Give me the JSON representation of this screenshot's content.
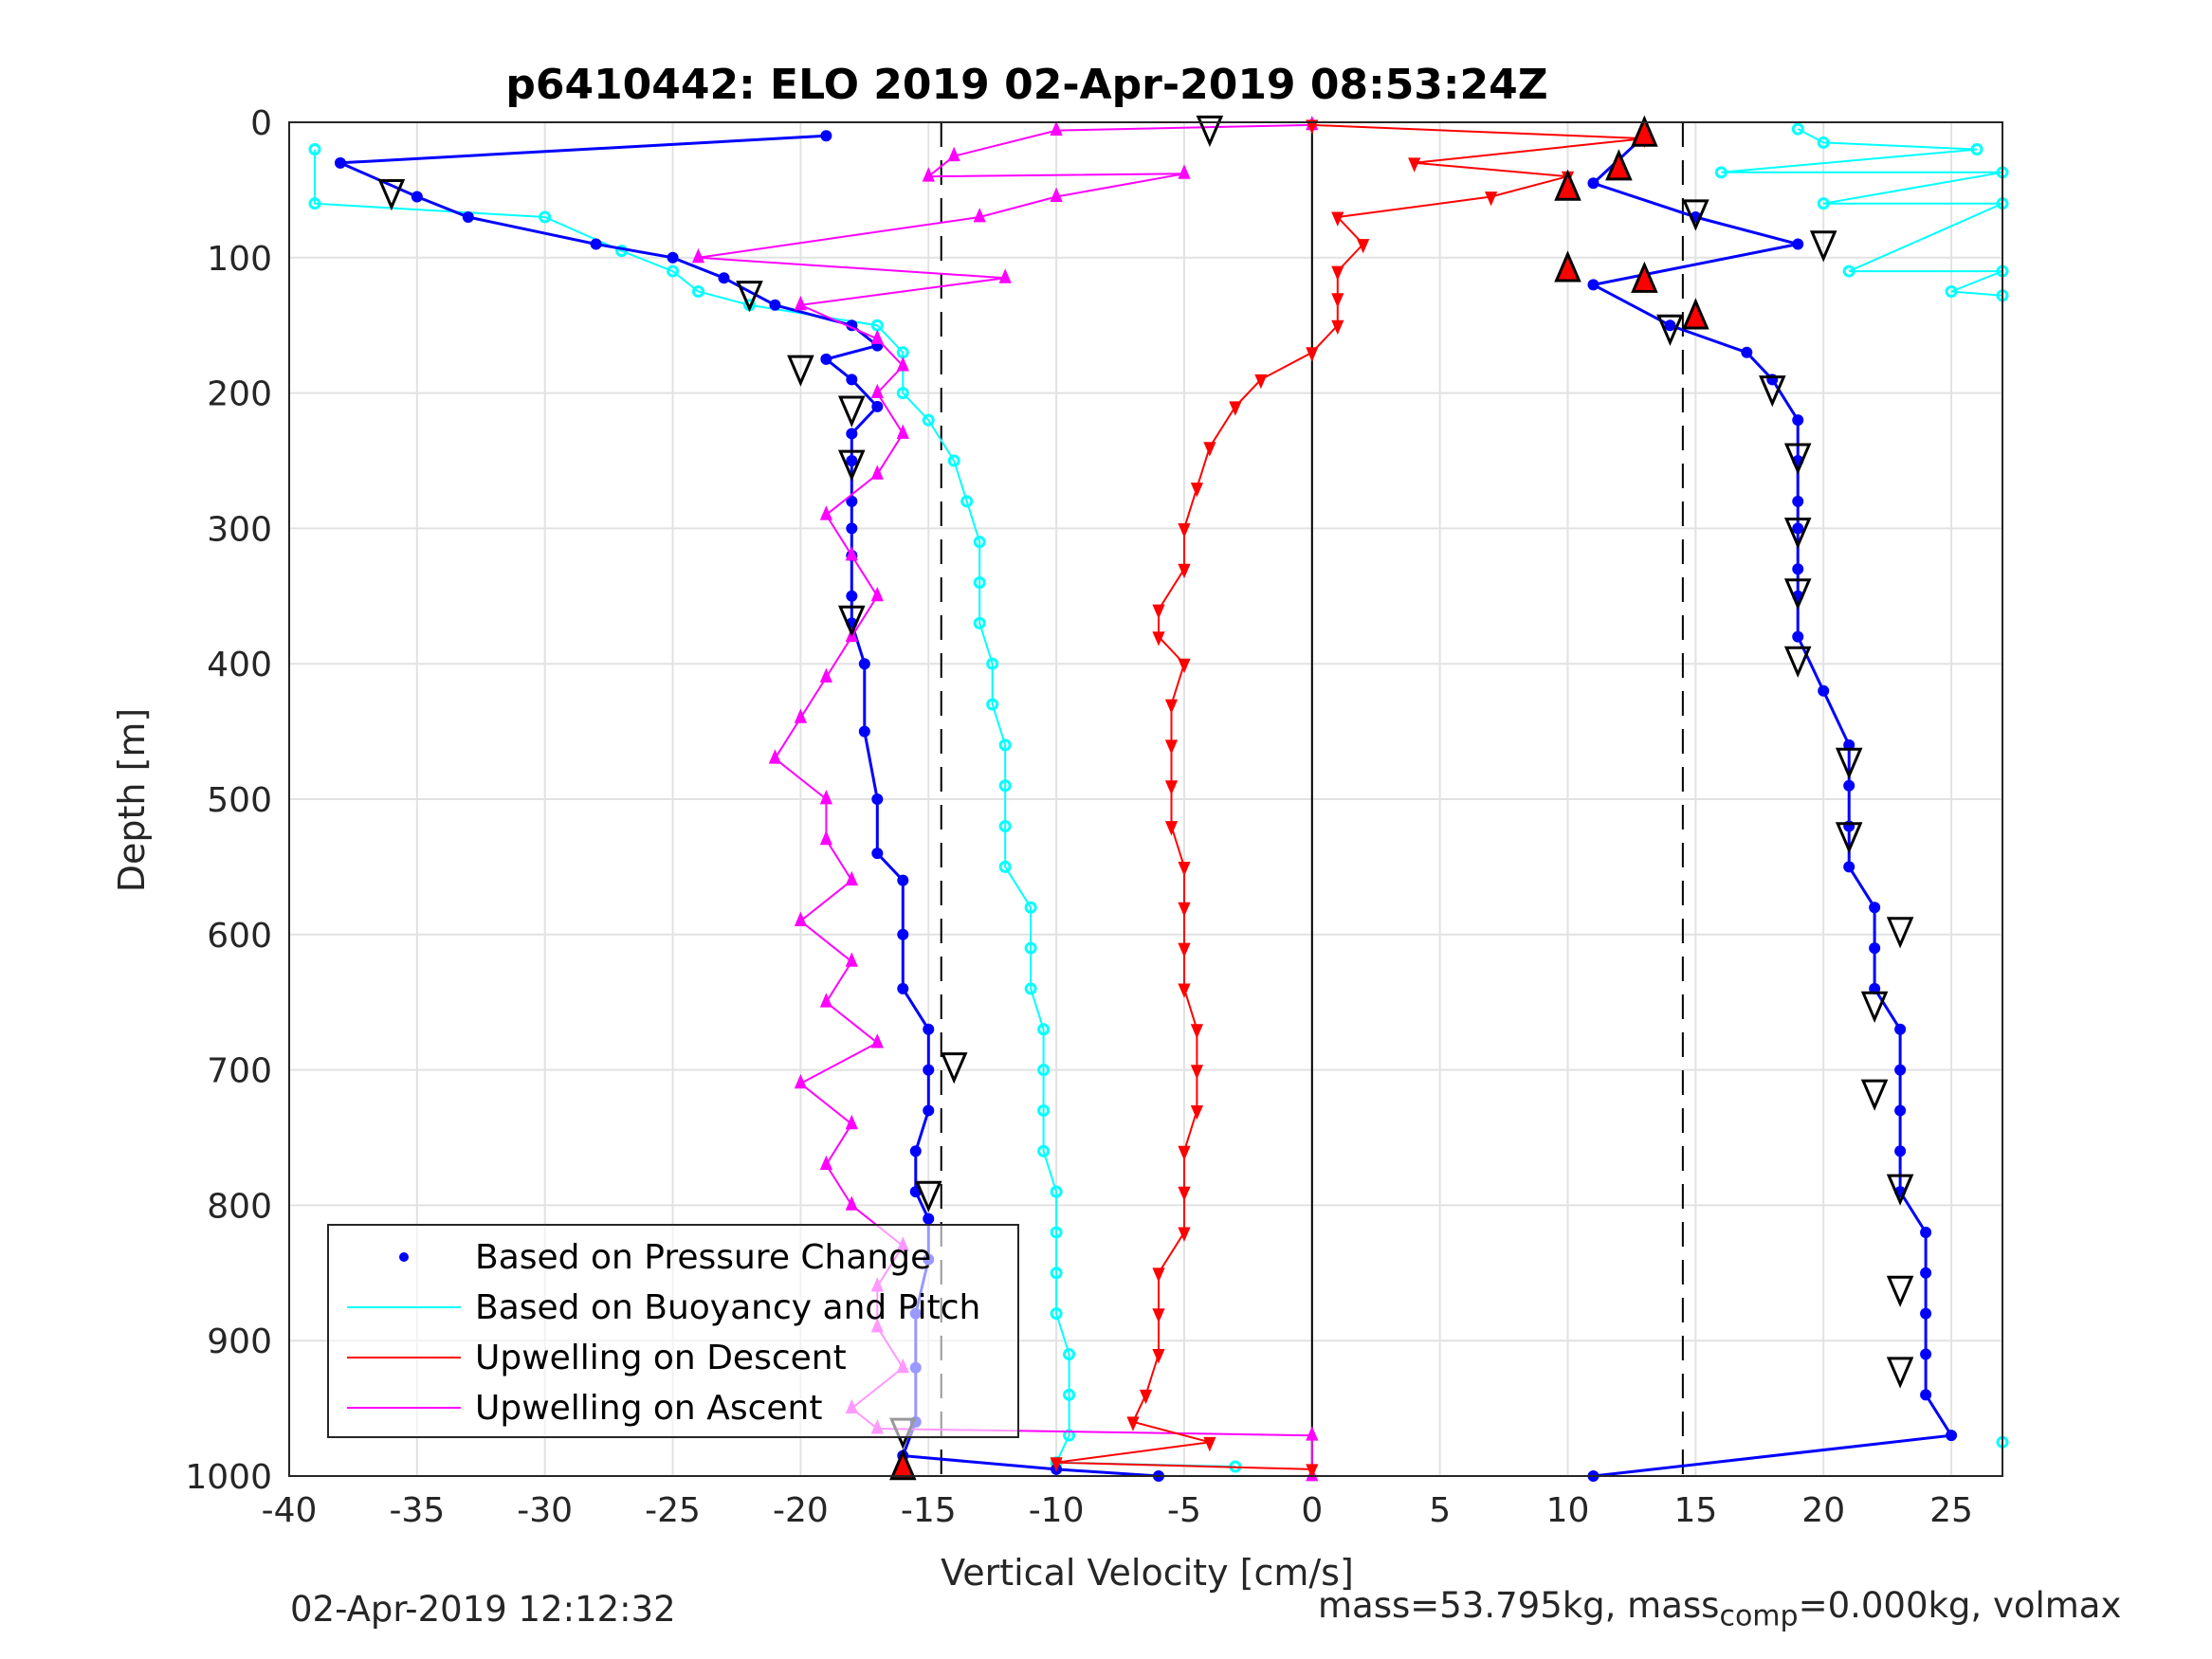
{
  "footer": {
    "timestamp": "02-Apr-2019 12:12:32",
    "mass_text_a": "mass=53.795kg, mass",
    "mass_sub": "comp",
    "mass_text_b": "=0.000kg, volmax"
  },
  "colors": {
    "pressure": "#0000ff",
    "buoyancy": "#00ffff",
    "descent": "#ff0000",
    "ascent": "#ff00ff",
    "grid": "#e2e2e2",
    "axis": "#262626"
  },
  "chart_data": {
    "type": "scatter",
    "title": "p6410442: ELO 2019 02-Apr-2019 08:53:24Z",
    "xlabel": "Vertical Velocity [cm/s]",
    "ylabel": "Depth [m]",
    "xlim": [
      -40,
      27
    ],
    "ylim": [
      0,
      1000
    ],
    "y_reversed": true,
    "xticks": [
      -40,
      -35,
      -30,
      -25,
      -20,
      -15,
      -10,
      -5,
      0,
      5,
      10,
      15,
      20,
      25
    ],
    "yticks": [
      0,
      100,
      200,
      300,
      400,
      500,
      600,
      700,
      800,
      900,
      1000
    ],
    "grid": true,
    "legend_position": "bottom-left",
    "reference_lines": {
      "dashed_x": [
        -14.5,
        14.5
      ],
      "solid_x": [
        0
      ]
    },
    "series": [
      {
        "name": "Based on Pressure Change",
        "style": "dots",
        "descent": [
          [
            -19,
            10
          ],
          [
            -38,
            30
          ],
          [
            -35,
            55
          ],
          [
            -33,
            70
          ],
          [
            -28,
            90
          ],
          [
            -25,
            100
          ],
          [
            -23,
            115
          ],
          [
            -21,
            135
          ],
          [
            -18,
            150
          ],
          [
            -17,
            165
          ],
          [
            -19,
            175
          ],
          [
            -18,
            190
          ],
          [
            -17,
            210
          ],
          [
            -18,
            230
          ],
          [
            -18,
            250
          ],
          [
            -18,
            280
          ],
          [
            -18,
            300
          ],
          [
            -18,
            320
          ],
          [
            -18,
            350
          ],
          [
            -18,
            370
          ],
          [
            -17.5,
            400
          ],
          [
            -17.5,
            450
          ],
          [
            -17,
            500
          ],
          [
            -17,
            540
          ],
          [
            -16,
            560
          ],
          [
            -16,
            600
          ],
          [
            -16,
            640
          ],
          [
            -15,
            670
          ],
          [
            -15,
            700
          ],
          [
            -15,
            730
          ],
          [
            -15.5,
            760
          ],
          [
            -15.5,
            790
          ],
          [
            -15,
            810
          ],
          [
            -15,
            840
          ],
          [
            -15.5,
            880
          ],
          [
            -15.5,
            920
          ],
          [
            -15.5,
            960
          ],
          [
            -16,
            985
          ],
          [
            -10,
            995
          ],
          [
            -6,
            1000
          ]
        ],
        "ascent": [
          [
            13,
            10
          ],
          [
            11,
            45
          ],
          [
            15,
            70
          ],
          [
            19,
            90
          ],
          [
            11,
            120
          ],
          [
            14,
            150
          ],
          [
            17,
            170
          ],
          [
            18,
            190
          ],
          [
            19,
            220
          ],
          [
            19,
            250
          ],
          [
            19,
            280
          ],
          [
            19,
            300
          ],
          [
            19,
            330
          ],
          [
            19,
            350
          ],
          [
            19,
            380
          ],
          [
            20,
            420
          ],
          [
            21,
            460
          ],
          [
            21,
            490
          ],
          [
            21,
            520
          ],
          [
            21,
            550
          ],
          [
            22,
            580
          ],
          [
            22,
            610
          ],
          [
            22,
            640
          ],
          [
            23,
            670
          ],
          [
            23,
            700
          ],
          [
            23,
            730
          ],
          [
            23,
            760
          ],
          [
            23,
            790
          ],
          [
            24,
            820
          ],
          [
            24,
            850
          ],
          [
            24,
            880
          ],
          [
            24,
            910
          ],
          [
            24,
            940
          ],
          [
            25,
            970
          ],
          [
            11,
            1000
          ]
        ]
      },
      {
        "name": "Based on Buoyancy and Pitch",
        "style": "line-circle",
        "descent": [
          [
            -39,
            20
          ],
          [
            -39,
            60
          ],
          [
            -30,
            70
          ],
          [
            -27,
            95
          ],
          [
            -25,
            110
          ],
          [
            -24,
            125
          ],
          [
            -22,
            135
          ],
          [
            -17,
            150
          ],
          [
            -16,
            170
          ],
          [
            -16,
            200
          ],
          [
            -15,
            220
          ],
          [
            -14,
            250
          ],
          [
            -13.5,
            280
          ],
          [
            -13,
            310
          ],
          [
            -13,
            340
          ],
          [
            -13,
            370
          ],
          [
            -12.5,
            400
          ],
          [
            -12.5,
            430
          ],
          [
            -12,
            460
          ],
          [
            -12,
            490
          ],
          [
            -12,
            520
          ],
          [
            -12,
            550
          ],
          [
            -11,
            580
          ],
          [
            -11,
            610
          ],
          [
            -11,
            640
          ],
          [
            -10.5,
            670
          ],
          [
            -10.5,
            700
          ],
          [
            -10.5,
            730
          ],
          [
            -10.5,
            760
          ],
          [
            -10,
            790
          ],
          [
            -10,
            820
          ],
          [
            -10,
            850
          ],
          [
            -10,
            880
          ],
          [
            -9.5,
            910
          ],
          [
            -9.5,
            940
          ],
          [
            -9.5,
            970
          ],
          [
            -10,
            990
          ],
          [
            -3,
            993
          ]
        ],
        "ascent": [
          [
            19,
            5
          ],
          [
            20,
            15
          ],
          [
            26,
            20
          ],
          [
            16,
            37
          ],
          [
            27,
            37
          ],
          [
            20,
            60
          ],
          [
            27,
            60
          ],
          [
            21,
            110
          ],
          [
            27,
            110
          ],
          [
            25,
            125
          ],
          [
            27,
            128
          ],
          [
            27,
            975
          ]
        ]
      },
      {
        "name": "Upwelling on Descent",
        "style": "line-triangle-down",
        "points": [
          [
            0,
            2
          ],
          [
            13,
            12
          ],
          [
            4,
            30
          ],
          [
            10,
            40
          ],
          [
            7,
            55
          ],
          [
            1,
            70
          ],
          [
            2,
            90
          ],
          [
            1,
            110
          ],
          [
            1,
            130
          ],
          [
            1,
            150
          ],
          [
            0,
            170
          ],
          [
            -2,
            190
          ],
          [
            -3,
            210
          ],
          [
            -4,
            240
          ],
          [
            -4.5,
            270
          ],
          [
            -5,
            300
          ],
          [
            -5,
            330
          ],
          [
            -6,
            360
          ],
          [
            -6,
            380
          ],
          [
            -5,
            400
          ],
          [
            -5.5,
            430
          ],
          [
            -5.5,
            460
          ],
          [
            -5.5,
            490
          ],
          [
            -5.5,
            520
          ],
          [
            -5,
            550
          ],
          [
            -5,
            580
          ],
          [
            -5,
            610
          ],
          [
            -5,
            640
          ],
          [
            -4.5,
            670
          ],
          [
            -4.5,
            700
          ],
          [
            -4.5,
            730
          ],
          [
            -5,
            760
          ],
          [
            -5,
            790
          ],
          [
            -5,
            820
          ],
          [
            -6,
            850
          ],
          [
            -6,
            880
          ],
          [
            -6,
            910
          ],
          [
            -6.5,
            940
          ],
          [
            -7,
            960
          ],
          [
            -4,
            975
          ],
          [
            -10,
            990
          ],
          [
            0,
            995
          ]
        ]
      },
      {
        "name": "Upwelling on Ascent",
        "style": "line-triangle-up",
        "points": [
          [
            0,
            2
          ],
          [
            -10,
            6
          ],
          [
            -14,
            25
          ],
          [
            -15,
            40
          ],
          [
            -5,
            38
          ],
          [
            -10,
            55
          ],
          [
            -13,
            70
          ],
          [
            -24,
            100
          ],
          [
            -12,
            115
          ],
          [
            -20,
            135
          ],
          [
            -17,
            160
          ],
          [
            -16,
            180
          ],
          [
            -17,
            200
          ],
          [
            -16,
            230
          ],
          [
            -17,
            260
          ],
          [
            -19,
            290
          ],
          [
            -18,
            320
          ],
          [
            -17,
            350
          ],
          [
            -18,
            380
          ],
          [
            -19,
            410
          ],
          [
            -20,
            440
          ],
          [
            -21,
            470
          ],
          [
            -19,
            500
          ],
          [
            -19,
            530
          ],
          [
            -18,
            560
          ],
          [
            -20,
            590
          ],
          [
            -18,
            620
          ],
          [
            -19,
            650
          ],
          [
            -17,
            680
          ],
          [
            -20,
            710
          ],
          [
            -18,
            740
          ],
          [
            -19,
            770
          ],
          [
            -18,
            800
          ],
          [
            -16,
            830
          ],
          [
            -17,
            860
          ],
          [
            -17,
            890
          ],
          [
            -16,
            920
          ],
          [
            -18,
            950
          ],
          [
            -17,
            965
          ],
          [
            0,
            970
          ],
          [
            0,
            1000
          ]
        ]
      }
    ],
    "markers": {
      "open_triangles": [
        [
          -4,
          3
        ],
        [
          -36,
          50
        ],
        [
          -22,
          125
        ],
        [
          -20,
          180
        ],
        [
          -18,
          210
        ],
        [
          -18,
          250
        ],
        [
          -18,
          365
        ],
        [
          -14,
          695
        ],
        [
          -15,
          790
        ],
        [
          -16,
          965
        ],
        [
          15,
          65
        ],
        [
          20,
          88
        ],
        [
          14,
          150
        ],
        [
          18,
          195
        ],
        [
          19,
          245
        ],
        [
          19,
          300
        ],
        [
          19,
          345
        ],
        [
          19,
          395
        ],
        [
          21,
          470
        ],
        [
          21,
          525
        ],
        [
          23,
          595
        ],
        [
          22,
          650
        ],
        [
          22,
          715
        ],
        [
          23,
          785
        ],
        [
          23,
          860
        ],
        [
          23,
          920
        ]
      ],
      "red_triangles": [
        [
          13,
          10
        ],
        [
          12,
          35
        ],
        [
          10,
          50
        ],
        [
          10,
          110
        ],
        [
          13,
          118
        ],
        [
          15,
          145
        ],
        [
          -16,
          995
        ]
      ]
    }
  },
  "legend": {
    "entries": [
      "Based on Pressure Change",
      "Based on Buoyancy and Pitch",
      "Upwelling on Descent",
      "Upwelling on Ascent"
    ]
  }
}
